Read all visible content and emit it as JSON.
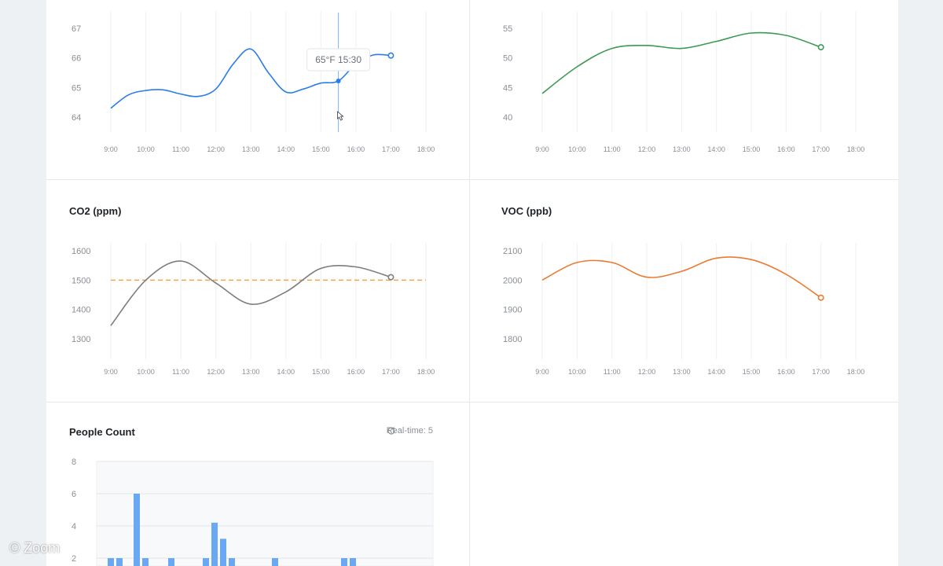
{
  "watermark": "© Zoom",
  "realtime_label": "Real-time: 5",
  "chart_data": [
    {
      "id": "temperature",
      "type": "line",
      "title": "",
      "color": "#2b7de9",
      "x": [
        "9:00",
        "9:30",
        "10:00",
        "10:30",
        "11:00",
        "11:30",
        "12:00",
        "12:30",
        "13:00",
        "13:30",
        "14:00",
        "14:30",
        "15:00",
        "15:30",
        "16:00",
        "16:30",
        "17:00"
      ],
      "y": [
        64.3,
        64.75,
        64.9,
        64.92,
        64.78,
        64.7,
        64.95,
        65.8,
        66.3,
        65.5,
        64.85,
        64.95,
        65.15,
        65.22,
        65.8,
        66.1,
        66.08
      ],
      "x_ticks": [
        "9:00",
        "10:00",
        "11:00",
        "12:00",
        "13:00",
        "14:00",
        "15:00",
        "16:00",
        "17:00",
        "18:00"
      ],
      "y_ticks": [
        "64",
        "65",
        "66",
        "67"
      ],
      "ylim": [
        63.6,
        67.4
      ],
      "hover_x": "15:30",
      "hover_y": 65.22,
      "tooltip": "65°F 15:30"
    },
    {
      "id": "humidity",
      "type": "line",
      "title": "",
      "color": "#3d9a52",
      "x": [
        "9:00",
        "10:00",
        "11:00",
        "12:00",
        "13:00",
        "14:00",
        "15:00",
        "16:00",
        "17:00"
      ],
      "y": [
        44,
        48.5,
        51.6,
        52.1,
        51.6,
        52.8,
        54.2,
        53.8,
        51.8
      ],
      "x_ticks": [
        "9:00",
        "10:00",
        "11:00",
        "12:00",
        "13:00",
        "14:00",
        "15:00",
        "16:00",
        "17:00",
        "18:00"
      ],
      "y_ticks": [
        "40",
        "45",
        "50",
        "55"
      ],
      "ylim": [
        37,
        58
      ]
    },
    {
      "id": "co2",
      "type": "line",
      "title": "CO2 (ppm)",
      "color": "#7d7d7d",
      "threshold": 1500,
      "threshold_color": "#f1a54a",
      "x": [
        "9:00",
        "10:00",
        "11:00",
        "12:00",
        "13:00",
        "14:00",
        "15:00",
        "16:00",
        "17:00"
      ],
      "y": [
        1345,
        1500,
        1565,
        1490,
        1418,
        1460,
        1540,
        1545,
        1510
      ],
      "x_ticks": [
        "9:00",
        "10:00",
        "11:00",
        "12:00",
        "13:00",
        "14:00",
        "15:00",
        "16:00",
        "17:00",
        "18:00"
      ],
      "y_ticks": [
        "1300",
        "1400",
        "1500",
        "1600"
      ],
      "ylim": [
        1250,
        1650
      ]
    },
    {
      "id": "voc",
      "type": "line",
      "title": "VOC (ppb)",
      "color": "#eb7b32",
      "x": [
        "9:00",
        "10:00",
        "11:00",
        "12:00",
        "13:00",
        "14:00",
        "15:00",
        "16:00",
        "17:00"
      ],
      "y": [
        2000,
        2060,
        2060,
        2010,
        2030,
        2075,
        2070,
        2020,
        1940
      ],
      "x_ticks": [
        "9:00",
        "10:00",
        "11:00",
        "12:00",
        "13:00",
        "14:00",
        "15:00",
        "16:00",
        "17:00",
        "18:00"
      ],
      "y_ticks": [
        "1800",
        "1900",
        "2000",
        "2100"
      ],
      "ylim": [
        1750,
        2140
      ]
    },
    {
      "id": "people",
      "type": "bar",
      "title": "People Count",
      "color": "#6aa8f3",
      "x": [
        "9:15",
        "9:30",
        "10:00",
        "10:15",
        "11:00",
        "12:00",
        "12:15",
        "12:30",
        "12:45",
        "14:00",
        "16:00",
        "16:15"
      ],
      "values": [
        2,
        2,
        6,
        2,
        2,
        2,
        4.2,
        3.2,
        2,
        2,
        2,
        2
      ],
      "y_ticks": [
        "2",
        "4",
        "6",
        "8"
      ],
      "ylim": [
        0,
        8
      ]
    }
  ]
}
